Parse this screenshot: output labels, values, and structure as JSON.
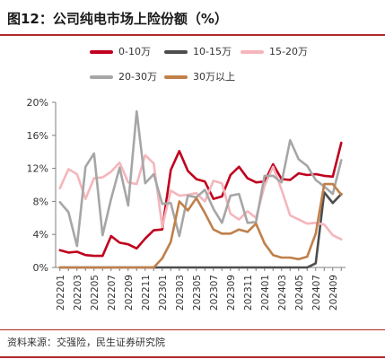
{
  "title": "图12：公司纯电市场上险份额（%）",
  "source": "资料来源：交强险，民生证券研究院",
  "chart_data": {
    "type": "line",
    "title": "图12：公司纯电市场上险份额（%）",
    "xlabel": "",
    "ylabel": "",
    "ylim": [
      0,
      20
    ],
    "y_ticks": [
      "0%",
      "4%",
      "8%",
      "12%",
      "16%",
      "20%"
    ],
    "grid": false,
    "legend_position": "top",
    "x": [
      "202201",
      "202202",
      "202203",
      "202204",
      "202205",
      "202206",
      "202207",
      "202208",
      "202209",
      "202210",
      "202211",
      "202212",
      "202301",
      "202302",
      "202303",
      "202304",
      "202305",
      "202306",
      "202307",
      "202308",
      "202309",
      "202310",
      "202311",
      "202312",
      "202401",
      "202402",
      "202403",
      "202404",
      "202405",
      "202406",
      "202407",
      "202408",
      "202409",
      "202410"
    ],
    "x_tick_labels": [
      "202201",
      "202203",
      "202205",
      "202207",
      "202209",
      "202211",
      "202301",
      "202303",
      "202305",
      "202307",
      "202309",
      "202311",
      "202401",
      "202403",
      "202405",
      "202407",
      "202409"
    ],
    "series": [
      {
        "name": "0-10万",
        "color": "#c0001e",
        "values": [
          2.1,
          1.8,
          1.9,
          1.5,
          1.4,
          1.4,
          3.8,
          3.0,
          2.8,
          2.3,
          3.5,
          4.5,
          4.6,
          11.8,
          14.1,
          11.7,
          10.7,
          10.4,
          8.3,
          8.6,
          11.2,
          12.2,
          10.8,
          10.3,
          10.4,
          12.5,
          10.7,
          10.6,
          11.4,
          11.2,
          11.3,
          11.1,
          11.0,
          15.1
        ]
      },
      {
        "name": "10-15万",
        "color": "#4d4d4d",
        "values": [
          0,
          0,
          0,
          0,
          0,
          0,
          0,
          0,
          0,
          0,
          0,
          0,
          0,
          0,
          0,
          0,
          0,
          0,
          0,
          0,
          0,
          0,
          0,
          0,
          0,
          0,
          0,
          0,
          0,
          0,
          0.5,
          9.1,
          7.8,
          8.9
        ]
      },
      {
        "name": "15-20万",
        "color": "#f4b6bb",
        "values": [
          9.6,
          11.9,
          11.3,
          8.3,
          10.8,
          10.9,
          11.6,
          12.7,
          10.3,
          10.1,
          13.6,
          12.6,
          4.9,
          9.3,
          8.7,
          8.8,
          9.0,
          8.0,
          10.5,
          10.2,
          6.5,
          5.8,
          6.8,
          6.0,
          9.9,
          12.2,
          9.4,
          6.3,
          5.8,
          5.3,
          5.4,
          5.2,
          3.9,
          3.4
        ]
      },
      {
        "name": "20-30万",
        "color": "#a6a6a6",
        "values": [
          7.9,
          6.7,
          2.6,
          12.2,
          13.8,
          3.9,
          8.3,
          12.1,
          7.5,
          18.9,
          10.2,
          11.3,
          7.7,
          7.8,
          3.8,
          8.7,
          8.5,
          9.4,
          7.1,
          5.4,
          8.7,
          8.9,
          5.4,
          5.5,
          11.1,
          11.1,
          10.3,
          15.4,
          13.1,
          12.3,
          10.6,
          9.8,
          8.9,
          13.0
        ]
      },
      {
        "name": "30万以上",
        "color": "#c0804a",
        "values": [
          0,
          0,
          0,
          0,
          0,
          0,
          0,
          0,
          0,
          0,
          0,
          0,
          1.1,
          3.1,
          8.0,
          6.9,
          8.4,
          6.6,
          4.6,
          4.1,
          4.1,
          4.6,
          4.3,
          5.3,
          2.9,
          1.5,
          1.2,
          1.2,
          1.0,
          1.3,
          4.1,
          10.1,
          10.1,
          8.8
        ]
      }
    ]
  }
}
